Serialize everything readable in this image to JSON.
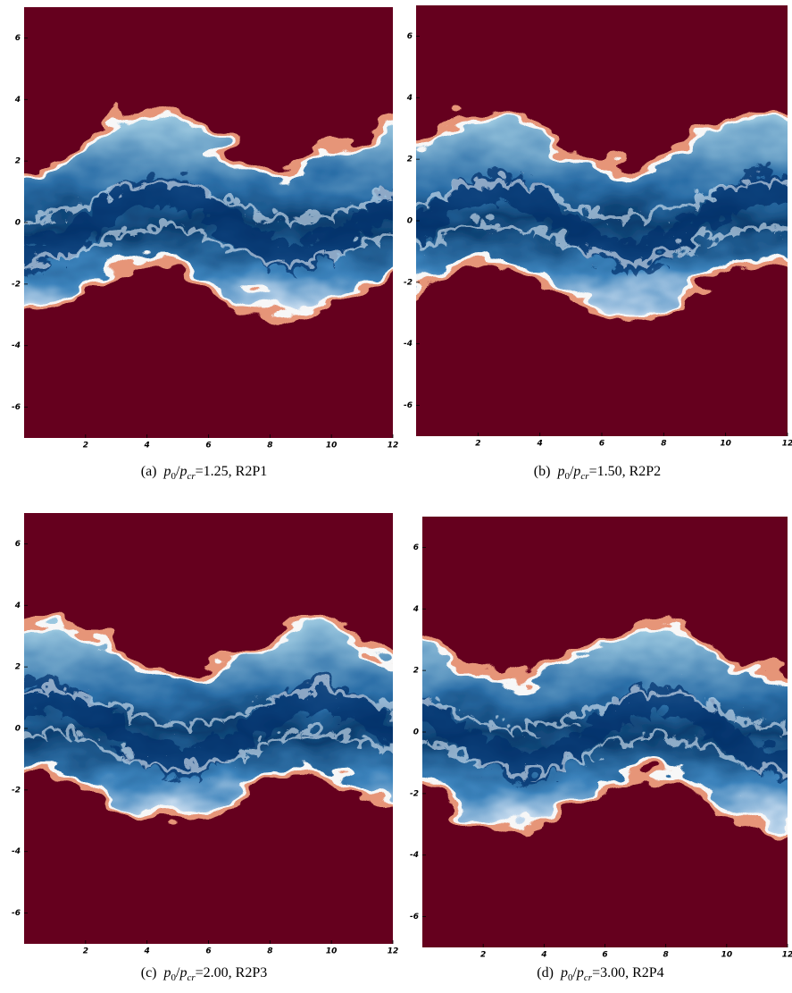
{
  "formula": {
    "base": "p",
    "num_sub": "0",
    "slash": "/",
    "den_sub": "cr",
    "eq": "=",
    "sep": ","
  },
  "panels": [
    {
      "label": "(a)",
      "value": "1.25",
      "run": "R2P1",
      "xlim": [
        0,
        12
      ],
      "ylim": [
        -7,
        7
      ],
      "xticks": [
        2,
        4,
        6,
        8,
        10,
        12
      ],
      "yticks": [
        -6,
        -4,
        -2,
        0,
        2,
        4,
        6
      ]
    },
    {
      "label": "(b)",
      "value": "1.50",
      "run": "R2P2",
      "xlim": [
        0,
        12
      ],
      "ylim": [
        -7,
        7
      ],
      "xticks": [
        2,
        4,
        6,
        8,
        10,
        12
      ],
      "yticks": [
        -6,
        -4,
        -2,
        0,
        2,
        4,
        6
      ]
    },
    {
      "label": "(c)",
      "value": "2.00",
      "run": "R2P3",
      "xlim": [
        0,
        12
      ],
      "ylim": [
        -7,
        7
      ],
      "xticks": [
        2,
        4,
        6,
        8,
        10,
        12
      ],
      "yticks": [
        -6,
        -4,
        -2,
        0,
        2,
        4,
        6
      ]
    },
    {
      "label": "(d)",
      "value": "3.00",
      "run": "R2P4",
      "xlim": [
        0,
        12
      ],
      "ylim": [
        -7,
        7
      ],
      "xticks": [
        2,
        4,
        6,
        8,
        10,
        12
      ],
      "yticks": [
        -6,
        -4,
        -2,
        0,
        2,
        4,
        6
      ]
    }
  ]
}
